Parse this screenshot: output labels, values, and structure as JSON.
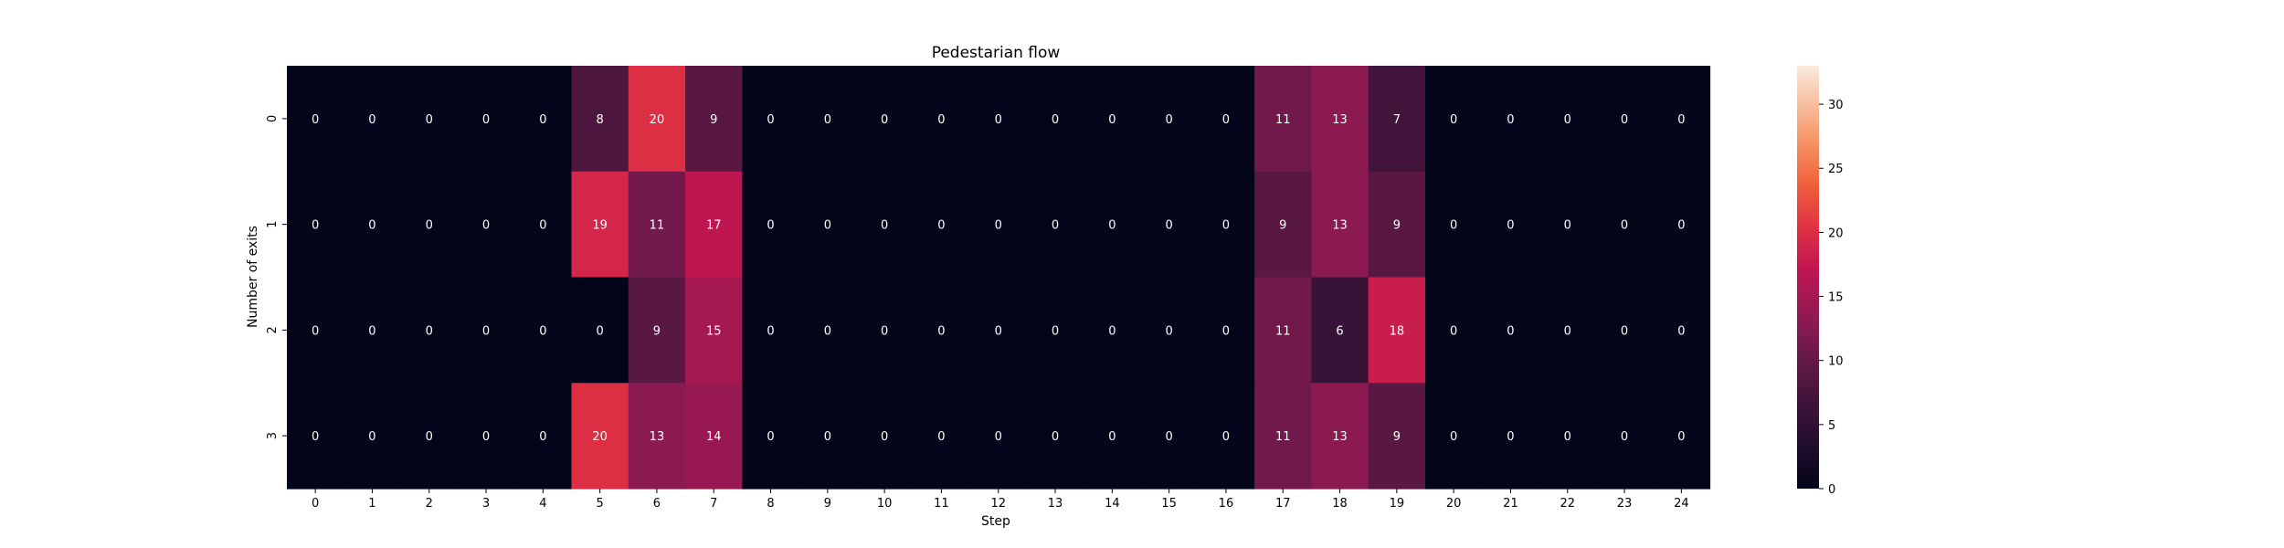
{
  "chart_data": {
    "type": "heatmap",
    "title": "Pedestarian flow",
    "xlabel": "Step",
    "ylabel": "Number of exits",
    "x_categories": [
      "0",
      "1",
      "2",
      "3",
      "4",
      "5",
      "6",
      "7",
      "8",
      "9",
      "10",
      "11",
      "12",
      "13",
      "14",
      "15",
      "16",
      "17",
      "18",
      "19",
      "20",
      "21",
      "22",
      "23",
      "24"
    ],
    "y_categories": [
      "0",
      "1",
      "2",
      "3"
    ],
    "values": [
      [
        0,
        0,
        0,
        0,
        0,
        8,
        20,
        9,
        0,
        0,
        0,
        0,
        0,
        0,
        0,
        0,
        0,
        11,
        13,
        7,
        0,
        0,
        0,
        0,
        0
      ],
      [
        0,
        0,
        0,
        0,
        0,
        19,
        11,
        17,
        0,
        0,
        0,
        0,
        0,
        0,
        0,
        0,
        0,
        9,
        13,
        9,
        0,
        0,
        0,
        0,
        0
      ],
      [
        0,
        0,
        0,
        0,
        0,
        0,
        9,
        15,
        0,
        0,
        0,
        0,
        0,
        0,
        0,
        0,
        0,
        11,
        6,
        18,
        0,
        0,
        0,
        0,
        0
      ],
      [
        0,
        0,
        0,
        0,
        0,
        20,
        13,
        14,
        0,
        0,
        0,
        0,
        0,
        0,
        0,
        0,
        0,
        11,
        13,
        9,
        0,
        0,
        0,
        0,
        0
      ]
    ],
    "annotations": true,
    "colorbar": {
      "min": 0,
      "max": 33,
      "ticks": [
        "0",
        "5",
        "10",
        "15",
        "20",
        "25",
        "30"
      ],
      "colormap": "rocket"
    }
  }
}
